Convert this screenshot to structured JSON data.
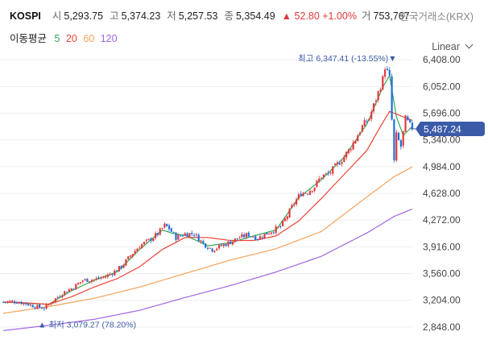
{
  "header": {
    "symbol": "KOSPI",
    "open_label": "시",
    "open": "5,293.75",
    "high_label": "고",
    "high": "5,374.23",
    "low_label": "저",
    "low": "5,257.53",
    "close_label": "종",
    "close": "5,354.49",
    "change": "▲ 52.80 +1.00%",
    "volume_label": "거",
    "volume": "753,767",
    "exchange": "한국거래소(KRX)"
  },
  "ma_legend": {
    "title": "이동평균",
    "items": [
      {
        "label": "5",
        "color": "#34a853"
      },
      {
        "label": "20",
        "color": "#ea4335"
      },
      {
        "label": "60",
        "color": "#f5a25d"
      },
      {
        "label": "120",
        "color": "#a066e0"
      }
    ]
  },
  "scale": "Linear",
  "colors": {
    "up": "#e0393e",
    "down": "#1f6fd8",
    "badge": "#3b5ba8"
  },
  "chart_data": {
    "type": "candlestick",
    "ylim": [
      2750,
      6560
    ],
    "yticks": [
      "6,408.00",
      "6,052.00",
      "5,696.00",
      "5,340.00",
      "4,984.00",
      "4,628.00",
      "4,272.00",
      "3,916.00",
      "3,560.00",
      "3,204.00",
      "2,848.00"
    ],
    "ytick_values": [
      6408,
      6052,
      5696,
      5340,
      4984,
      4628,
      4272,
      3916,
      3560,
      3204,
      2848
    ],
    "last_price": {
      "value": 5487.24,
      "label": "5,487.24"
    },
    "max_annotation": {
      "value": 6347.41,
      "label": "최고 6,347.41 (-13.55%)▼"
    },
    "min_annotation": {
      "value": 3079.27,
      "label": "▲ 최저 3,079.27 (78.20%)"
    },
    "price_path": [
      [
        0,
        3180
      ],
      [
        5,
        3190
      ],
      [
        10,
        3160
      ],
      [
        14,
        3120
      ],
      [
        18,
        3100
      ],
      [
        22,
        3200
      ],
      [
        26,
        3300
      ],
      [
        30,
        3360
      ],
      [
        35,
        3470
      ],
      [
        40,
        3480
      ],
      [
        45,
        3520
      ],
      [
        48,
        3570
      ],
      [
        52,
        3650
      ],
      [
        56,
        3800
      ],
      [
        60,
        3930
      ],
      [
        64,
        4000
      ],
      [
        68,
        4090
      ],
      [
        71,
        4200
      ],
      [
        73,
        4160
      ],
      [
        76,
        4040
      ],
      [
        80,
        4090
      ],
      [
        84,
        4090
      ],
      [
        88,
        3960
      ],
      [
        92,
        3880
      ],
      [
        96,
        3930
      ],
      [
        100,
        3980
      ],
      [
        104,
        4040
      ],
      [
        108,
        4080
      ],
      [
        112,
        4030
      ],
      [
        115,
        4080
      ],
      [
        119,
        4140
      ],
      [
        122,
        4180
      ],
      [
        125,
        4330
      ],
      [
        128,
        4500
      ],
      [
        131,
        4630
      ],
      [
        134,
        4650
      ],
      [
        137,
        4720
      ],
      [
        140,
        4860
      ],
      [
        143,
        4880
      ],
      [
        146,
        4980
      ],
      [
        149,
        5080
      ],
      [
        152,
        5200
      ],
      [
        155,
        5350
      ],
      [
        158,
        5520
      ],
      [
        161,
        5630
      ],
      [
        164,
        5880
      ],
      [
        167,
        6150
      ],
      [
        168,
        6320
      ],
      [
        170,
        6160
      ],
      [
        172,
        5050
      ],
      [
        173,
        5400
      ],
      [
        175,
        5250
      ],
      [
        177,
        5620
      ],
      [
        179,
        5530
      ],
      [
        180,
        5487
      ]
    ],
    "ma": [
      {
        "period": "5",
        "color": "#34a853",
        "path": [
          [
            0,
            3180
          ],
          [
            10,
            3165
          ],
          [
            20,
            3150
          ],
          [
            30,
            3330
          ],
          [
            40,
            3470
          ],
          [
            50,
            3580
          ],
          [
            60,
            3880
          ],
          [
            70,
            4140
          ],
          [
            75,
            4090
          ],
          [
            80,
            4070
          ],
          [
            90,
            3930
          ],
          [
            100,
            3970
          ],
          [
            110,
            4060
          ],
          [
            120,
            4140
          ],
          [
            130,
            4570
          ],
          [
            140,
            4810
          ],
          [
            150,
            5110
          ],
          [
            160,
            5550
          ],
          [
            167,
            6040
          ],
          [
            170,
            6200
          ],
          [
            173,
            5650
          ],
          [
            176,
            5400
          ],
          [
            180,
            5520
          ]
        ]
      },
      {
        "period": "20",
        "color": "#ea4335",
        "path": [
          [
            0,
            3180
          ],
          [
            10,
            3170
          ],
          [
            20,
            3150
          ],
          [
            30,
            3250
          ],
          [
            40,
            3380
          ],
          [
            50,
            3490
          ],
          [
            60,
            3650
          ],
          [
            70,
            3880
          ],
          [
            80,
            4040
          ],
          [
            90,
            4040
          ],
          [
            100,
            4000
          ],
          [
            110,
            4000
          ],
          [
            120,
            4060
          ],
          [
            130,
            4260
          ],
          [
            140,
            4560
          ],
          [
            150,
            4880
          ],
          [
            160,
            5200
          ],
          [
            166,
            5520
          ],
          [
            170,
            5720
          ],
          [
            180,
            5600
          ]
        ]
      },
      {
        "period": "60",
        "color": "#f5a25d",
        "path": [
          [
            0,
            3030
          ],
          [
            20,
            3120
          ],
          [
            40,
            3230
          ],
          [
            60,
            3380
          ],
          [
            80,
            3560
          ],
          [
            100,
            3740
          ],
          [
            120,
            3890
          ],
          [
            140,
            4120
          ],
          [
            160,
            4580
          ],
          [
            172,
            4850
          ],
          [
            180,
            4980
          ]
        ]
      },
      {
        "period": "120",
        "color": "#a066e0",
        "path": [
          [
            0,
            2800
          ],
          [
            20,
            2870
          ],
          [
            40,
            2950
          ],
          [
            60,
            3070
          ],
          [
            80,
            3240
          ],
          [
            100,
            3400
          ],
          [
            120,
            3580
          ],
          [
            140,
            3790
          ],
          [
            160,
            4100
          ],
          [
            172,
            4320
          ],
          [
            180,
            4420
          ]
        ]
      }
    ]
  }
}
